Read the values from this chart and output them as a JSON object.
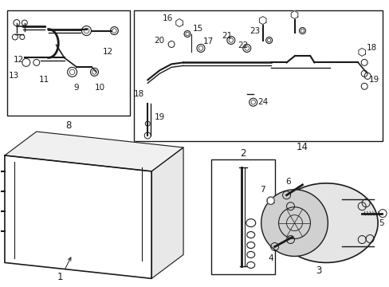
{
  "bg_color": "#ffffff",
  "line_color": "#1a1a1a",
  "fig_width": 4.89,
  "fig_height": 3.6,
  "dpi": 100,
  "font_size": 7.5,
  "bold_font_size": 8.5
}
